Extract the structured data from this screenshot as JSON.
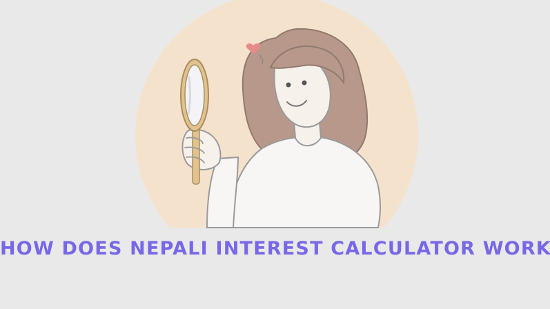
{
  "headline": {
    "text": "HOW DOES NEPALI INTEREST CALCULATOR WORKS",
    "color": "#7668e6"
  },
  "illustration": {
    "subject": "woman-looking-in-hand-mirror",
    "icons": [
      "heart-icon",
      "hand-mirror-icon"
    ]
  },
  "colors": {
    "background": "#e9e9e9",
    "circle": "#f5e2cc",
    "hair": "#b8988a",
    "skin": "#f7f1ec",
    "shirt": "#f7f6f4",
    "outline": "#9a9a9a",
    "mirror_frame": "#e2c38e",
    "heart": "#e88a8a"
  }
}
